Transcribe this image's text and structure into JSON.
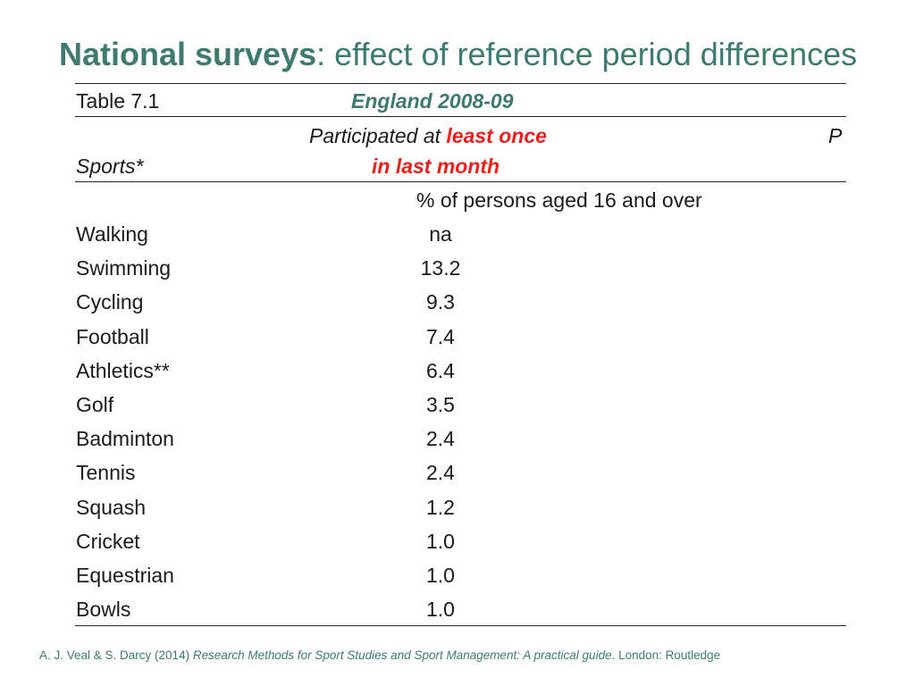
{
  "slide": {
    "title_bold": "National surveys",
    "title_rest": ": effect of reference period differences"
  },
  "table": {
    "label": "Table 7.1",
    "region": "England 2008-09",
    "col_header_line1_a": "Participated at ",
    "col_header_line1_b": "least once",
    "col_header_line2": "in last month",
    "right_header": "P",
    "row_header": "Sports*",
    "units": "% of persons aged 16 and over",
    "rows": [
      {
        "sport": "Walking",
        "value": "na"
      },
      {
        "sport": "Swimming",
        "value": "13.2"
      },
      {
        "sport": "Cycling",
        "value": "9.3"
      },
      {
        "sport": "Football",
        "value": "7.4"
      },
      {
        "sport": "Athletics**",
        "value": "6.4"
      },
      {
        "sport": "Golf",
        "value": "3.5"
      },
      {
        "sport": "Badminton",
        "value": "2.4"
      },
      {
        "sport": "Tennis",
        "value": "2.4"
      },
      {
        "sport": "Squash",
        "value": "1.2"
      },
      {
        "sport": "Cricket",
        "value": "1.0"
      },
      {
        "sport": "Equestrian",
        "value": "1.0"
      },
      {
        "sport": "Bowls",
        "value": "1.0"
      }
    ]
  },
  "citation": {
    "authors": "A. J. Veal & S. Darcy (2014) ",
    "book": "Research Methods for Sport Studies and Sport Management: A practical guide",
    "publisher": ". London: Routledge"
  },
  "colors": {
    "accent_teal": "#3e7a6e",
    "highlight_red": "#e8211c"
  }
}
